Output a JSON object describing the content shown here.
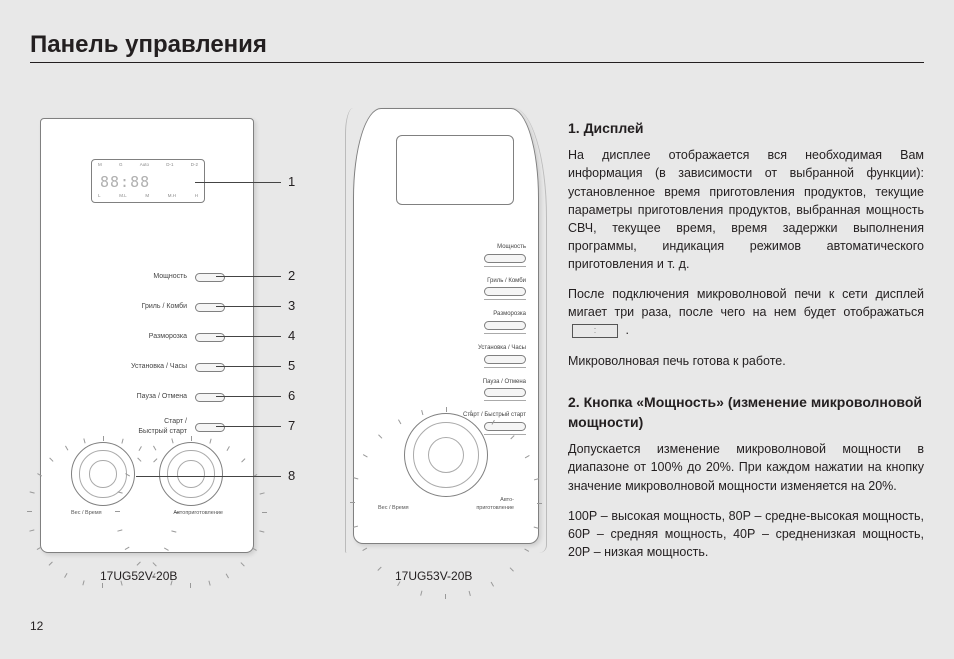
{
  "page": {
    "title": "Панель управления",
    "number": "12"
  },
  "panel1": {
    "model": "17UG52V-20B",
    "display_top_labels": [
      "M",
      "G",
      "Auto",
      "D-1",
      "D-2"
    ],
    "display_bottom_labels": [
      "L",
      "M.L",
      "M",
      "M.H",
      "H"
    ],
    "buttons": [
      "Мощность",
      "Гриль / Комби",
      "Разморозка",
      "Установка / Часы",
      "Пауза / Отмена",
      "Старт /\nБыстрый старт"
    ],
    "dial_left_label": "Вес / Время",
    "dial_right_label": "Автоприготовление"
  },
  "panel2": {
    "model": "17UG53V-20B",
    "buttons": [
      "Мощность",
      "Гриль / Комби",
      "Разморозка",
      "Установка / Часы",
      "Пауза / Отмена",
      "Старт / Быстрый старт"
    ],
    "dial_left_label": "Вес / Время",
    "dial_right_label": "Авто-\nприготовление"
  },
  "callouts": [
    "1",
    "2",
    "3",
    "4",
    "5",
    "6",
    "7",
    "8"
  ],
  "text": {
    "h1": "1. Дисплей",
    "p1": "На дисплее отображается вся необходимая Вам информация (в зависимости от выбранной функции): установленное время приготовления продуктов, текущие параметры приготовления продуктов, выбранная мощность СВЧ, текущее время, время задержки выполнения программы, индикация режимов автоматического приготовления и т. д.",
    "p2a": "После подключения микроволновой печи к сети дисплей мигает три раза, после чего на нем будет отображаться",
    "p2b": ".",
    "p3": "Микроволновая печь готова к работе.",
    "h2": "2. Кнопка «Мощность» (изменение микроволновой мощности)",
    "p4": "Допускается изменение микроволновой мощности в диапазоне от 100% до 20%. При каждом нажатии на кнопку значение микроволновой мощности изменяется на 20%.",
    "p5": "100Р – высокая мощность, 80Р – средне-высокая мощность, 60Р – средняя мощность, 40Р – средненизкая мощность, 20Р – низкая мощность."
  },
  "colors": {
    "bg": "#e8e8e8",
    "ink": "#231f20",
    "line": "#808080"
  }
}
